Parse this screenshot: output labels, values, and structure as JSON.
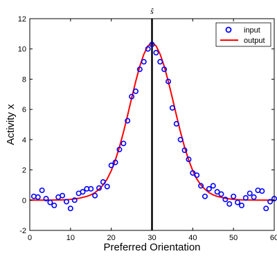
{
  "chart_data": {
    "type": "scatter",
    "xlabel": "Preferred Orientation",
    "ylabel": "Activity x",
    "xlim": [
      0,
      60
    ],
    "ylim": [
      -2,
      12
    ],
    "xticks": [
      0,
      10,
      20,
      30,
      40,
      50,
      60
    ],
    "yticks": [
      -2,
      0,
      2,
      4,
      6,
      8,
      10,
      12
    ],
    "annotation": {
      "text": "ŝ",
      "x": 30
    },
    "legend_position": "top-right",
    "series": [
      {
        "name": "input",
        "kind": "markers",
        "color": "#0000ff",
        "x": [
          1,
          2,
          3,
          4,
          5,
          6,
          7,
          8,
          9,
          10,
          11,
          12,
          13,
          14,
          15,
          16,
          17,
          18,
          19,
          20,
          21,
          22,
          23,
          24,
          25,
          26,
          27,
          28,
          29,
          30,
          31,
          32,
          33,
          34,
          35,
          36,
          37,
          38,
          39,
          40,
          41,
          42,
          43,
          44,
          45,
          46,
          47,
          48,
          49,
          50,
          51,
          52,
          53,
          54,
          55,
          56,
          57,
          58,
          59,
          60
        ],
        "y": [
          0.25,
          0.2,
          0.65,
          0.1,
          -0.15,
          -0.35,
          0.2,
          0.3,
          -0.1,
          -0.55,
          0.0,
          0.45,
          0.55,
          0.75,
          0.75,
          0.3,
          0.8,
          1.2,
          0.9,
          2.3,
          2.5,
          3.35,
          3.75,
          5.25,
          6.85,
          7.2,
          8.65,
          9.15,
          10.0,
          10.3,
          9.75,
          9.15,
          8.65,
          7.85,
          6.1,
          5.05,
          4.0,
          3.3,
          2.7,
          1.8,
          1.65,
          0.95,
          0.25,
          0.75,
          0.95,
          0.55,
          0.4,
          0.05,
          -0.25,
          0.25,
          -0.15,
          -0.35,
          0.15,
          0.45,
          0.2,
          0.65,
          0.6,
          -0.55,
          -0.1,
          0.1
        ]
      },
      {
        "name": "output",
        "kind": "line",
        "color": "#ff0000",
        "x": [
          0,
          2,
          4,
          6,
          8,
          10,
          12,
          14,
          15,
          16,
          17,
          18,
          19,
          20,
          21,
          22,
          23,
          24,
          25,
          26,
          27,
          28,
          29,
          30,
          31,
          32,
          33,
          34,
          35,
          36,
          37,
          38,
          39,
          40,
          41,
          42,
          43,
          44,
          45,
          46,
          48,
          50,
          52,
          54,
          56,
          58,
          60
        ],
        "y": [
          0.0,
          0.0,
          0.0,
          0.01,
          0.02,
          0.05,
          0.12,
          0.25,
          0.35,
          0.5,
          0.72,
          1.0,
          1.4,
          1.95,
          2.65,
          3.5,
          4.5,
          5.6,
          6.75,
          7.85,
          8.85,
          9.65,
          10.2,
          10.4,
          10.2,
          9.65,
          8.85,
          7.85,
          6.75,
          5.6,
          4.5,
          3.5,
          2.65,
          1.95,
          1.4,
          1.0,
          0.72,
          0.5,
          0.35,
          0.25,
          0.12,
          0.05,
          0.02,
          0.01,
          0.0,
          0.0,
          0.0
        ]
      }
    ],
    "vertical_line": {
      "x": 30,
      "color": "#000000"
    }
  }
}
